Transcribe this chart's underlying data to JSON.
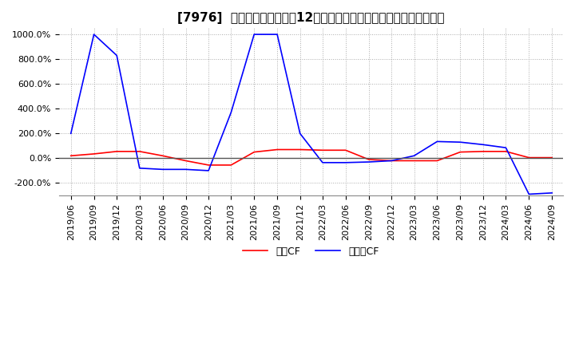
{
  "title": "[7976]  キャッシュフローの12か月移動合計の対前年同期増減率の推移",
  "legend_labels": [
    "営業CF",
    "フリーCF"
  ],
  "line_colors": [
    "#ff0000",
    "#0000ff"
  ],
  "ylim": [
    -300,
    1050
  ],
  "yticks": [
    -200,
    0,
    200,
    400,
    600,
    800,
    1000
  ],
  "ytick_labels": [
    "-200.0%",
    "0.0%",
    "200.0%",
    "400.0%",
    "600.0%",
    "800.0%",
    "1000.0%"
  ],
  "background_color": "#ffffff",
  "op_CF_x": [
    "2019-06",
    "2019-09",
    "2019-12",
    "2020-03",
    "2020-06",
    "2020-09",
    "2020-12",
    "2021-03",
    "2021-06",
    "2021-09",
    "2021-12",
    "2022-03",
    "2022-06",
    "2022-09",
    "2022-12",
    "2023-03",
    "2023-06",
    "2023-09",
    "2023-12",
    "2024-03",
    "2024-06",
    "2024-09"
  ],
  "op_CF_y": [
    20,
    35,
    55,
    55,
    20,
    -20,
    -55,
    -55,
    50,
    70,
    70,
    65,
    65,
    -10,
    -20,
    -20,
    -20,
    50,
    55,
    55,
    5,
    5
  ],
  "free_CF_x": [
    "2019-06",
    "2019-09",
    "2019-12",
    "2020-03",
    "2020-06",
    "2020-09",
    "2020-12",
    "2021-03",
    "2021-06",
    "2021-09",
    "2021-12",
    "2022-03",
    "2022-06",
    "2022-09",
    "2022-12",
    "2023-03",
    "2023-06",
    "2023-09",
    "2023-12",
    "2024-03",
    "2024-06",
    "2024-09"
  ],
  "free_CF_y": [
    200,
    1000,
    830,
    -80,
    -90,
    -90,
    -100,
    370,
    1000,
    1000,
    200,
    -35,
    -35,
    -30,
    -20,
    20,
    135,
    130,
    110,
    85,
    -290,
    -280
  ],
  "grid_color": "#aaaaaa",
  "grid_style": ":",
  "zero_line_color": "#555555",
  "title_fontsize": 11,
  "tick_fontsize": 8,
  "legend_fontsize": 9
}
